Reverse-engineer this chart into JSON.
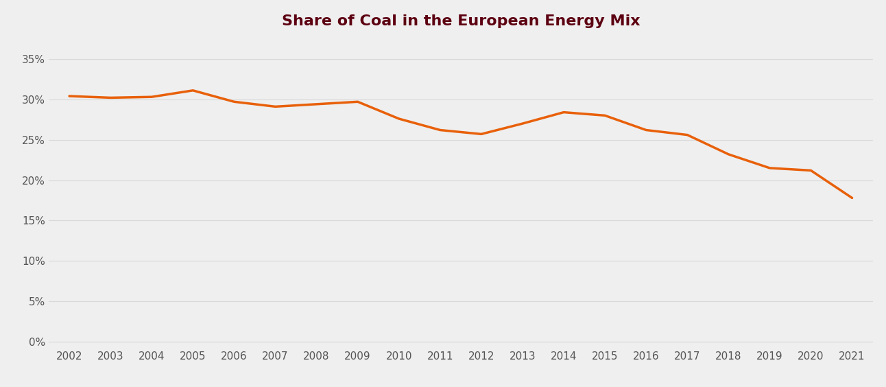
{
  "title": "Share of Coal in the European Energy Mix",
  "years": [
    2002,
    2003,
    2004,
    2005,
    2006,
    2007,
    2008,
    2009,
    2010,
    2011,
    2012,
    2013,
    2014,
    2015,
    2016,
    2017,
    2018,
    2019,
    2020,
    2021
  ],
  "values": [
    0.304,
    0.302,
    0.303,
    0.311,
    0.297,
    0.291,
    0.294,
    0.297,
    0.276,
    0.262,
    0.257,
    0.27,
    0.284,
    0.28,
    0.262,
    0.256,
    0.232,
    0.215,
    0.212,
    0.178
  ],
  "line_color": "#E8600A",
  "line_width": 2.5,
  "background_color": "#EFEFEF",
  "title_color": "#5C0011",
  "title_fontsize": 16,
  "yticks": [
    0.0,
    0.05,
    0.1,
    0.15,
    0.2,
    0.25,
    0.3,
    0.35
  ],
  "ylim": [
    -0.008,
    0.375
  ],
  "grid_color": "#D8D8D8",
  "tick_label_color": "#555555",
  "tick_label_fontsize": 11
}
